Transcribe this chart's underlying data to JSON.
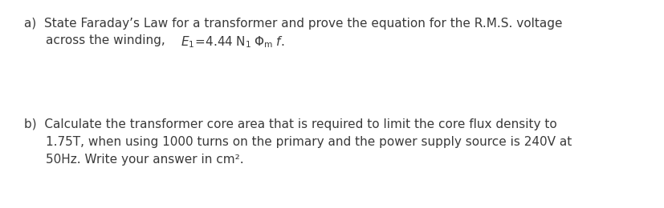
{
  "background_color": "#ffffff",
  "figsize": [
    8.28,
    2.6
  ],
  "dpi": 100,
  "font_size": 11.0,
  "text_color": "#3a3a3a",
  "font_family": "DejaVu Sans"
}
